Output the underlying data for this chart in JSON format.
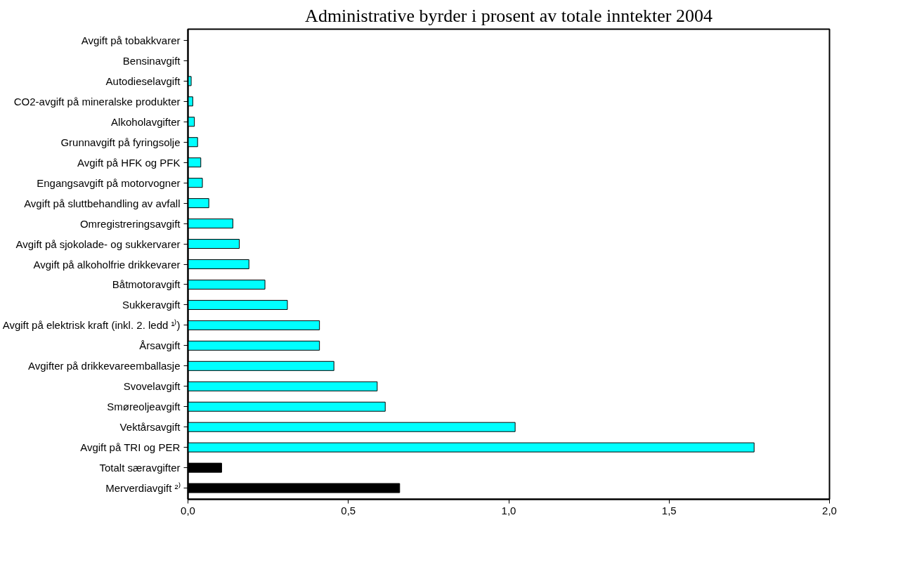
{
  "chart_data": {
    "type": "bar",
    "orientation": "horizontal",
    "title": "Administrative byrder i prosent av totale inntekter 2004",
    "categories": [
      "Avgift på tobakkvarer",
      "Bensinavgift",
      "Autodieselavgift",
      "CO2-avgift på mineralske produkter",
      "Alkoholavgifter",
      "Grunnavgift på fyringsolje",
      "Avgift på HFK og PFK",
      "Engangsavgift på motorvogner",
      "Avgift på sluttbehandling av avfall",
      "Omregistreringsavgift",
      "Avgift på sjokolade- og sukkervarer",
      "Avgift på alkoholfrie drikkevarer",
      "Båtmotoravgift",
      "Sukkeravgift",
      "Avgift på elektrisk kraft (inkl. 2. ledd ¹⁾)",
      "Årsavgift",
      "Avgifter på drikkevareemballasje",
      "Svovelavgift",
      "Smøreoljeavgift",
      "Vektårsavgift",
      "Avgift på TRI og PER",
      "Totalt særavgifter",
      "Merverdiavgift ²⁾"
    ],
    "values": [
      0,
      0,
      0.01,
      0.015,
      0.02,
      0.03,
      0.04,
      0.045,
      0.065,
      0.14,
      0.16,
      0.19,
      0.24,
      0.31,
      0.41,
      0.41,
      0.455,
      0.59,
      0.615,
      1.02,
      1.765,
      0.105,
      0.66
    ],
    "colors": [
      "#00ffff",
      "#00ffff",
      "#00ffff",
      "#00ffff",
      "#00ffff",
      "#00ffff",
      "#00ffff",
      "#00ffff",
      "#00ffff",
      "#00ffff",
      "#00ffff",
      "#00ffff",
      "#00ffff",
      "#00ffff",
      "#00ffff",
      "#00ffff",
      "#00ffff",
      "#00ffff",
      "#00ffff",
      "#00ffff",
      "#00ffff",
      "#000000",
      "#000000"
    ],
    "xlim": [
      0,
      2
    ],
    "xticks": [
      {
        "value": 0,
        "label": "0,0"
      },
      {
        "value": 0.5,
        "label": "0,5"
      },
      {
        "value": 1,
        "label": "1,0"
      },
      {
        "value": 1.5,
        "label": "1,5"
      },
      {
        "value": 2,
        "label": "2,0"
      }
    ],
    "grid": false
  }
}
